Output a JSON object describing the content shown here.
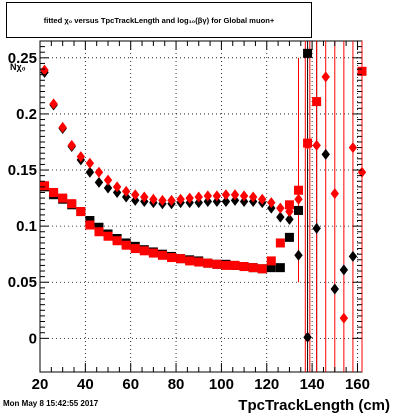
{
  "page": {
    "title": "fitted χ₀ versus TpcTrackLength and log₁₀(βγ) for Global muon+",
    "datestamp": "Mon May  8 15:42:55 2017"
  },
  "colors": {
    "series_black": "#000000",
    "series_red": "#ff0000",
    "grid": "#000000",
    "background": "#ffffff"
  },
  "chart_data": {
    "type": "scatter",
    "title": "fitted χ₀ versus TpcTrackLength and log₁₀(βγ) for Global muon+",
    "xlabel": "TpcTrackLength (cm)",
    "ylabel": "Nχ₀",
    "xlim": [
      20,
      162
    ],
    "ylim": [
      -0.03,
      0.265
    ],
    "x_ticks": [
      20,
      40,
      60,
      80,
      100,
      120,
      140,
      160
    ],
    "y_ticks": [
      0,
      0.05,
      0.1,
      0.15,
      0.2,
      0.25
    ],
    "y_tick_labels": [
      "0",
      "0.05",
      "0.1",
      "0.15",
      "0.2",
      "0.25"
    ],
    "grid": true,
    "series": [
      {
        "color": "black",
        "marker": "diamond",
        "points": [
          {
            "x": 22,
            "y": 0.237
          },
          {
            "x": 26,
            "y": 0.208
          },
          {
            "x": 30,
            "y": 0.187
          },
          {
            "x": 34,
            "y": 0.171
          },
          {
            "x": 38,
            "y": 0.159
          },
          {
            "x": 42,
            "y": 0.148
          },
          {
            "x": 46,
            "y": 0.139
          },
          {
            "x": 50,
            "y": 0.134
          },
          {
            "x": 54,
            "y": 0.13
          },
          {
            "x": 58,
            "y": 0.126
          },
          {
            "x": 62,
            "y": 0.123
          },
          {
            "x": 66,
            "y": 0.122
          },
          {
            "x": 70,
            "y": 0.121
          },
          {
            "x": 74,
            "y": 0.12
          },
          {
            "x": 78,
            "y": 0.12
          },
          {
            "x": 82,
            "y": 0.121
          },
          {
            "x": 86,
            "y": 0.121
          },
          {
            "x": 90,
            "y": 0.121
          },
          {
            "x": 94,
            "y": 0.122
          },
          {
            "x": 98,
            "y": 0.122
          },
          {
            "x": 102,
            "y": 0.122
          },
          {
            "x": 106,
            "y": 0.123
          },
          {
            "x": 110,
            "y": 0.122
          },
          {
            "x": 114,
            "y": 0.122
          },
          {
            "x": 118,
            "y": 0.121
          },
          {
            "x": 122,
            "y": 0.116
          },
          {
            "x": 126,
            "y": 0.108
          },
          {
            "x": 130,
            "y": 0.106
          },
          {
            "x": 134,
            "y": 0.074
          },
          {
            "x": 138,
            "y": 0.001
          },
          {
            "x": 142,
            "y": 0.098
          },
          {
            "x": 146,
            "y": 0.164
          },
          {
            "x": 150,
            "y": 0.044
          },
          {
            "x": 154,
            "y": 0.061
          },
          {
            "x": 158,
            "y": 0.073
          }
        ]
      },
      {
        "color": "black",
        "marker": "square",
        "points": [
          {
            "x": 22,
            "y": 0.135
          },
          {
            "x": 26,
            "y": 0.128
          },
          {
            "x": 30,
            "y": 0.124
          },
          {
            "x": 34,
            "y": 0.119
          },
          {
            "x": 38,
            "y": 0.113
          },
          {
            "x": 42,
            "y": 0.105
          },
          {
            "x": 46,
            "y": 0.099
          },
          {
            "x": 50,
            "y": 0.093
          },
          {
            "x": 54,
            "y": 0.089
          },
          {
            "x": 58,
            "y": 0.085
          },
          {
            "x": 62,
            "y": 0.082
          },
          {
            "x": 66,
            "y": 0.079
          },
          {
            "x": 70,
            "y": 0.077
          },
          {
            "x": 74,
            "y": 0.075
          },
          {
            "x": 78,
            "y": 0.073
          },
          {
            "x": 82,
            "y": 0.071
          },
          {
            "x": 86,
            "y": 0.07
          },
          {
            "x": 90,
            "y": 0.069
          },
          {
            "x": 94,
            "y": 0.067
          },
          {
            "x": 98,
            "y": 0.066
          },
          {
            "x": 102,
            "y": 0.066
          },
          {
            "x": 106,
            "y": 0.065
          },
          {
            "x": 110,
            "y": 0.064
          },
          {
            "x": 114,
            "y": 0.063
          },
          {
            "x": 118,
            "y": 0.062
          },
          {
            "x": 122,
            "y": 0.063
          },
          {
            "x": 126,
            "y": 0.063
          },
          {
            "x": 130,
            "y": 0.09
          },
          {
            "x": 134,
            "y": 0.114
          },
          {
            "x": 138,
            "y": 0.254
          }
        ]
      },
      {
        "color": "red",
        "marker": "diamond",
        "points": [
          {
            "x": 22,
            "y": 0.239
          },
          {
            "x": 26,
            "y": 0.209
          },
          {
            "x": 30,
            "y": 0.188
          },
          {
            "x": 34,
            "y": 0.172
          },
          {
            "x": 38,
            "y": 0.162
          },
          {
            "x": 42,
            "y": 0.156
          },
          {
            "x": 46,
            "y": 0.148
          },
          {
            "x": 50,
            "y": 0.141
          },
          {
            "x": 54,
            "y": 0.135
          },
          {
            "x": 58,
            "y": 0.131
          },
          {
            "x": 62,
            "y": 0.128
          },
          {
            "x": 66,
            "y": 0.126
          },
          {
            "x": 70,
            "y": 0.124
          },
          {
            "x": 74,
            "y": 0.123
          },
          {
            "x": 78,
            "y": 0.123
          },
          {
            "x": 82,
            "y": 0.124
          },
          {
            "x": 86,
            "y": 0.125
          },
          {
            "x": 90,
            "y": 0.126
          },
          {
            "x": 94,
            "y": 0.127
          },
          {
            "x": 98,
            "y": 0.127
          },
          {
            "x": 102,
            "y": 0.128
          },
          {
            "x": 106,
            "y": 0.128
          },
          {
            "x": 110,
            "y": 0.127
          },
          {
            "x": 114,
            "y": 0.126
          },
          {
            "x": 118,
            "y": 0.124
          },
          {
            "x": 122,
            "y": 0.121
          },
          {
            "x": 126,
            "y": 0.116
          },
          {
            "x": 130,
            "y": 0.113
          },
          {
            "x": 134,
            "y": 0.124
          },
          {
            "x": 138,
            "y": 0.173
          },
          {
            "x": 142,
            "y": 0.172
          },
          {
            "x": 146,
            "y": 0.233
          },
          {
            "x": 150,
            "y": 0.129
          },
          {
            "x": 154,
            "y": 0.018
          },
          {
            "x": 158,
            "y": 0.17
          },
          {
            "x": 162,
            "y": 0.148
          }
        ]
      },
      {
        "color": "red",
        "marker": "square",
        "points": [
          {
            "x": 22,
            "y": 0.136
          },
          {
            "x": 26,
            "y": 0.13
          },
          {
            "x": 30,
            "y": 0.125
          },
          {
            "x": 34,
            "y": 0.12
          },
          {
            "x": 38,
            "y": 0.113
          },
          {
            "x": 42,
            "y": 0.101
          },
          {
            "x": 46,
            "y": 0.095
          },
          {
            "x": 50,
            "y": 0.091
          },
          {
            "x": 54,
            "y": 0.087
          },
          {
            "x": 58,
            "y": 0.083
          },
          {
            "x": 62,
            "y": 0.08
          },
          {
            "x": 66,
            "y": 0.078
          },
          {
            "x": 70,
            "y": 0.076
          },
          {
            "x": 74,
            "y": 0.074
          },
          {
            "x": 78,
            "y": 0.072
          },
          {
            "x": 82,
            "y": 0.071
          },
          {
            "x": 86,
            "y": 0.069
          },
          {
            "x": 90,
            "y": 0.068
          },
          {
            "x": 94,
            "y": 0.067
          },
          {
            "x": 98,
            "y": 0.066
          },
          {
            "x": 102,
            "y": 0.065
          },
          {
            "x": 106,
            "y": 0.065
          },
          {
            "x": 110,
            "y": 0.064
          },
          {
            "x": 114,
            "y": 0.063
          },
          {
            "x": 118,
            "y": 0.062
          },
          {
            "x": 122,
            "y": 0.069
          },
          {
            "x": 126,
            "y": 0.085
          },
          {
            "x": 130,
            "y": 0.119
          },
          {
            "x": 134,
            "y": 0.132
          },
          {
            "x": 138,
            "y": 0.174
          },
          {
            "x": 142,
            "y": 0.211
          },
          {
            "x": 162,
            "y": 0.238
          }
        ]
      }
    ],
    "error_bars": [
      {
        "color": "black",
        "x": 138,
        "low": -0.03,
        "high": 0.265
      },
      {
        "color": "black",
        "x": 142,
        "low": -0.03,
        "high": 0.265
      },
      {
        "color": "red",
        "x": 134,
        "low": 0.05,
        "high": 0.25
      },
      {
        "color": "red",
        "x": 137,
        "low": -0.03,
        "high": 0.265
      },
      {
        "color": "red",
        "x": 139,
        "low": -0.03,
        "high": 0.265
      },
      {
        "color": "red",
        "x": 142,
        "low": -0.03,
        "high": 0.265
      },
      {
        "color": "red",
        "x": 146,
        "low": -0.03,
        "high": 0.265
      },
      {
        "color": "red",
        "x": 150,
        "low": -0.03,
        "high": 0.265
      },
      {
        "color": "red",
        "x": 154,
        "low": -0.03,
        "high": 0.265
      },
      {
        "color": "red",
        "x": 158,
        "low": -0.03,
        "high": 0.265
      },
      {
        "color": "red",
        "x": 162,
        "low": -0.03,
        "high": 0.265
      }
    ]
  }
}
